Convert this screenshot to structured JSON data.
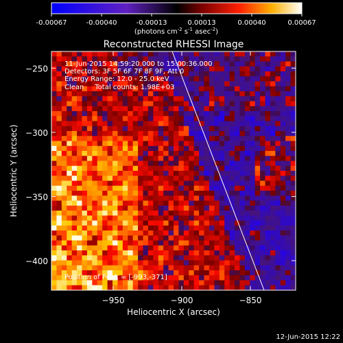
{
  "colorbar": {
    "ticks": [
      "-0.00067",
      "-0.00040",
      "-0.00013",
      "0.00013",
      "0.00040",
      "0.00067"
    ],
    "units_text": "(photons cm",
    "units_sup1": "-2",
    "units_mid": " s",
    "units_sup2": "-1",
    "units_mid2": " asec",
    "units_sup3": "-2",
    "units_end": ")"
  },
  "title": "Reconstructed RHESSI Image",
  "info": {
    "line1": "11-Jun-2015 14:59:20.000 to 15:00:36.000",
    "line2": "Detectors: 3F 5F 6F 7F 8F 9F, Att 0",
    "line3": "Energy Range: 12.0 - 25.0 keV",
    "line4": "Clean     Total counts: 1.98E+03"
  },
  "peak_label": "Position of Peak = [-993,-371]",
  "timestamp": "12-Jun-2015 12:22",
  "chart_data": {
    "type": "heatmap",
    "title": "Reconstructed RHESSI Image",
    "xlabel": "Heliocentric X (arcsec)",
    "ylabel": "Heliocentric Y (arcsec)",
    "xlim": [
      -995,
      -817
    ],
    "ylim": [
      -423,
      -237
    ],
    "xticks": [
      -950,
      -900,
      -850
    ],
    "yticks": [
      -250,
      -300,
      -350,
      -400
    ],
    "colorbar_range": [
      -0.00067,
      0.00067
    ],
    "peak_position": [
      -993,
      -371
    ],
    "limb_line": [
      [
        -907,
        -237
      ],
      [
        -840,
        -423
      ]
    ]
  }
}
